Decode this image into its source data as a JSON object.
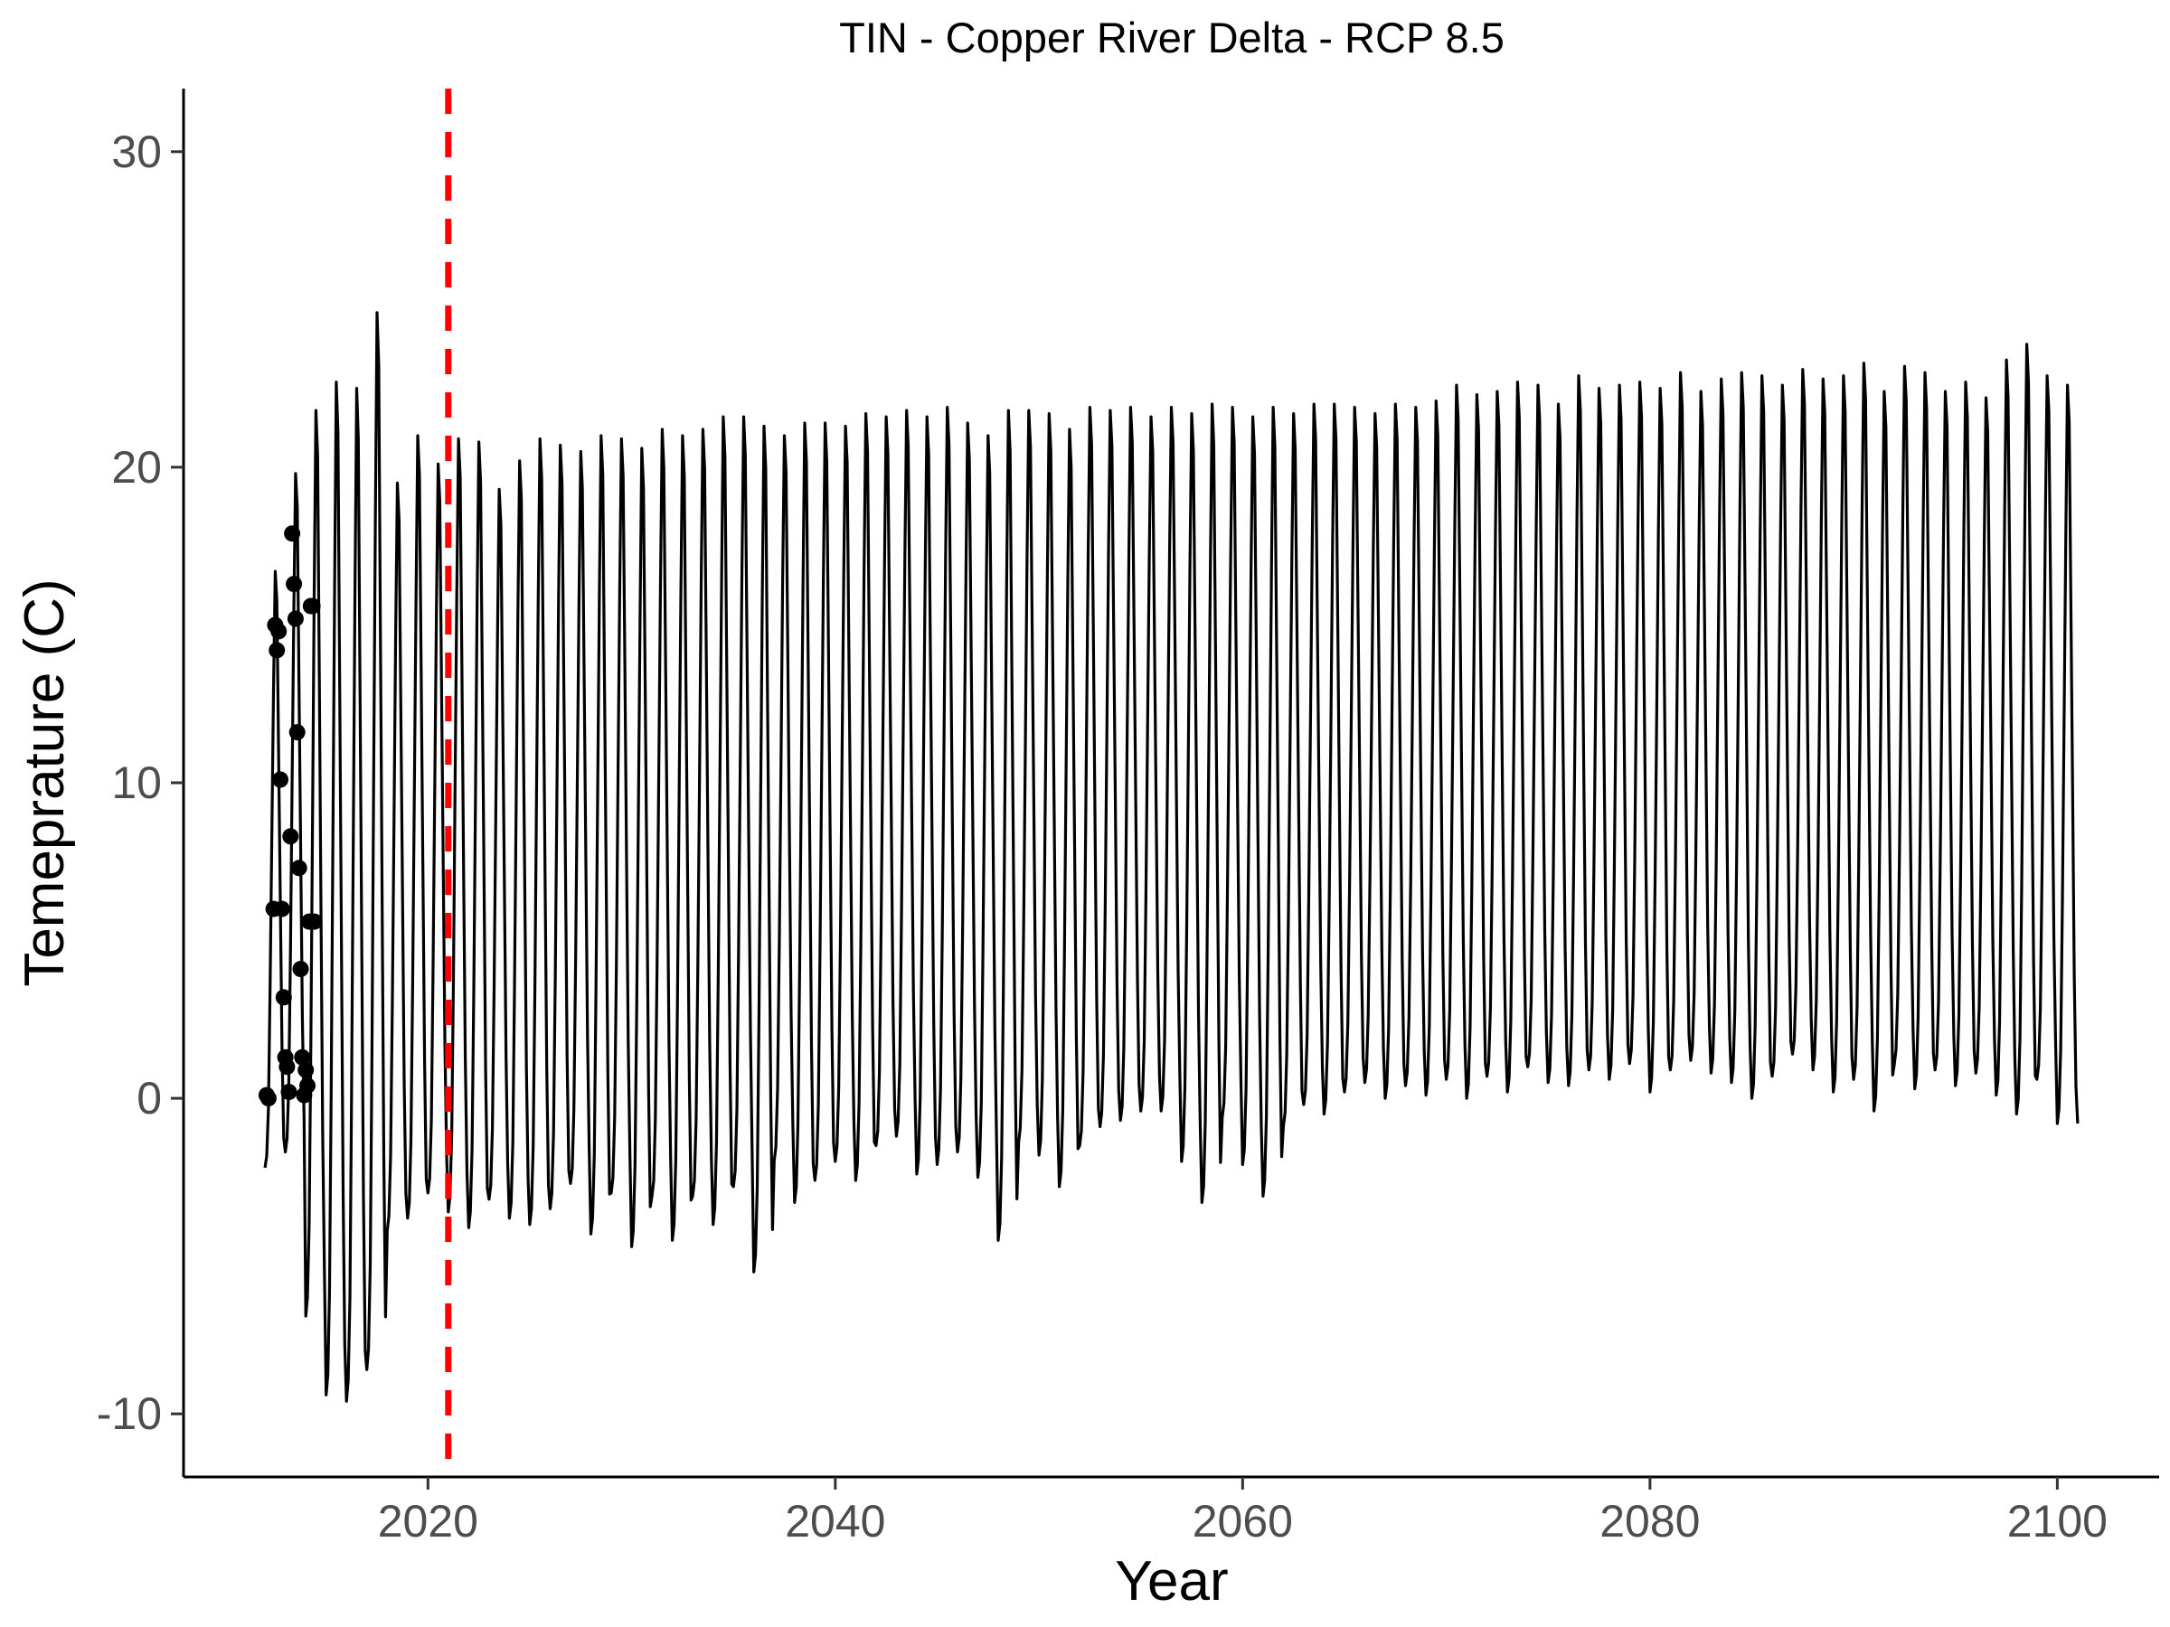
{
  "chart_data": {
    "type": "line",
    "title": "TIN - Copper River Delta - RCP 8.5",
    "xlabel": "Year",
    "ylabel": "Temeprature (C)",
    "xlim": [
      2008,
      2105
    ],
    "ylim": [
      -12,
      32
    ],
    "x_ticks": [
      2020,
      2040,
      2060,
      2080,
      2100
    ],
    "y_ticks": [
      -10,
      0,
      10,
      20,
      30
    ],
    "grid": false,
    "legend": "none",
    "line_color": "#000000",
    "series": [
      {
        "frequency": "monthly",
        "x_start": 2012.0,
        "x_end": 2101.0,
        "annual_summer_peak": [
          16.7,
          19.8,
          21.8,
          22.7,
          22.5,
          24.9,
          19.5,
          21.0,
          20.1,
          20.9,
          20.8,
          19.3,
          20.2,
          20.9,
          20.7,
          20.5,
          21.0,
          20.9,
          20.6,
          21.2,
          21.0,
          21.2,
          21.6,
          21.6,
          21.3,
          21.0,
          21.4,
          21.4,
          21.3,
          21.7,
          21.6,
          21.8,
          21.6,
          21.9,
          21.4,
          21.0,
          21.8,
          21.8,
          21.7,
          21.2,
          21.9,
          21.8,
          21.9,
          21.6,
          21.9,
          21.7,
          22.0,
          21.9,
          21.6,
          21.9,
          21.7,
          22.0,
          22.0,
          21.9,
          21.7,
          22.0,
          21.9,
          22.1,
          22.6,
          22.3,
          22.4,
          22.7,
          22.6,
          22.0,
          22.9,
          22.5,
          22.6,
          22.7,
          22.5,
          23.0,
          22.4,
          22.8,
          23.0,
          22.9,
          22.6,
          23.1,
          22.8,
          22.9,
          23.3,
          22.4,
          23.2,
          23.0,
          22.4,
          22.7,
          22.2,
          23.4,
          23.9,
          22.9,
          22.6
        ],
        "annual_winter_min": [
          -2.2,
          -1.7,
          -6.9,
          -9.4,
          -9.6,
          -8.6,
          -4.2,
          -3.8,
          -3.0,
          -3.6,
          -4.1,
          -3.2,
          -3.8,
          -4.0,
          -3.5,
          -2.7,
          -4.3,
          -3.0,
          -4.7,
          -3.1,
          -4.5,
          -3.1,
          -4.0,
          -2.8,
          -5.5,
          -2.0,
          -3.3,
          -2.6,
          -2.0,
          -2.6,
          -1.5,
          -1.2,
          -2.4,
          -2.1,
          -1.7,
          -2.5,
          -4.5,
          -1.4,
          -1.8,
          -2.8,
          -1.5,
          -0.9,
          -0.7,
          -0.4,
          -0.4,
          -2.0,
          -3.3,
          -0.6,
          -2.1,
          -3.1,
          -0.9,
          -0.2,
          -0.5,
          0.2,
          0.5,
          0.0,
          0.4,
          0.1,
          0.6,
          0.0,
          0.7,
          0.2,
          1.0,
          0.5,
          0.4,
          0.9,
          0.6,
          1.1,
          0.2,
          0.9,
          1.2,
          0.8,
          0.5,
          0.0,
          0.7,
          1.4,
          0.9,
          0.2,
          0.6,
          -0.4,
          1.1,
          0.3,
          0.9,
          0.4,
          0.8,
          0.1,
          -0.5,
          0.6,
          -0.8
        ]
      }
    ],
    "observed_points": {
      "x": [
        2012.08,
        2012.17,
        2012.42,
        2012.5,
        2012.58,
        2012.67,
        2012.75,
        2012.83,
        2012.92,
        2013.0,
        2013.08,
        2013.17,
        2013.25,
        2013.33,
        2013.42,
        2013.5,
        2013.58,
        2013.67,
        2013.75,
        2013.83,
        2013.92,
        2014.0,
        2014.08,
        2014.17,
        2014.25,
        2014.33,
        2014.42
      ],
      "y": [
        0.1,
        0.0,
        6.0,
        15.0,
        14.2,
        14.8,
        10.1,
        6.0,
        3.2,
        1.3,
        1.0,
        0.2,
        8.3,
        17.9,
        16.3,
        15.2,
        11.6,
        7.3,
        4.1,
        1.3,
        0.1,
        0.9,
        0.4,
        5.6,
        15.6,
        15.6,
        5.6
      ]
    },
    "reference_line": {
      "x": 2021,
      "color": "#ff0000",
      "style": "dashed"
    }
  }
}
